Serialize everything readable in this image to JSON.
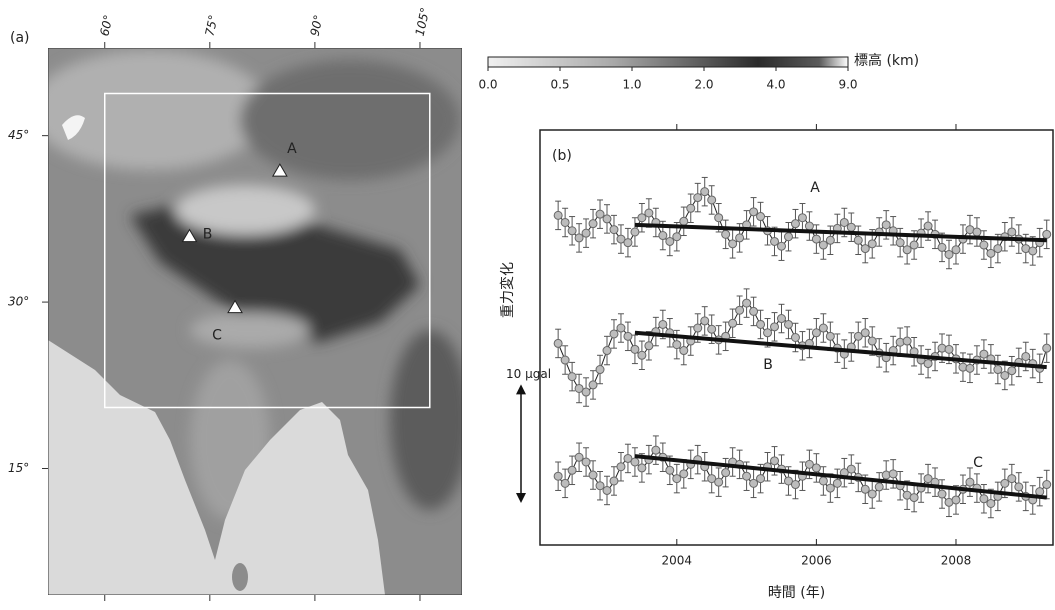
{
  "chart_data": [
    {
      "type": "map",
      "panel_label": "(a)",
      "xlim": [
        51.9,
        111
      ],
      "ylim": [
        3.6,
        52.9
      ],
      "xticks": [
        {
          "value": 60,
          "label": "60°"
        },
        {
          "value": 75,
          "label": "75°"
        },
        {
          "value": 90,
          "label": "90°"
        },
        {
          "value": 105,
          "label": "105°"
        }
      ],
      "yticks": [
        {
          "value": 15,
          "label": "15°"
        },
        {
          "value": 30,
          "label": "30°"
        },
        {
          "value": 45,
          "label": "45°"
        }
      ],
      "region": {
        "lon": [
          60,
          106.4
        ],
        "lat": [
          20.5,
          48.8
        ]
      },
      "sites": [
        {
          "name": "A",
          "lon": 85,
          "lat": 41.8
        },
        {
          "name": "B",
          "lon": 72.1,
          "lat": 35.9
        },
        {
          "name": "C",
          "lon": 78.6,
          "lat": 29.5
        }
      ],
      "colorbar": {
        "title": "標高 (km)",
        "ticks": [
          {
            "value": 0,
            "label": "0.0"
          },
          {
            "value": 0.5,
            "label": "0.5"
          },
          {
            "value": 1,
            "label": "1.0"
          },
          {
            "value": 2,
            "label": "2.0"
          },
          {
            "value": 4,
            "label": "4.0"
          },
          {
            "value": 9,
            "label": "9.0"
          }
        ]
      }
    },
    {
      "type": "scatter",
      "panel_label": "(b)",
      "xlabel": "時間 (年)",
      "ylabel": "重力変化",
      "xlim": [
        2002.04,
        2009.39
      ],
      "ylim": [
        0,
        35
      ],
      "xticks": [
        2004,
        2006,
        2008
      ],
      "scale_bar": {
        "value": 10,
        "label": "10 μgal"
      },
      "error": 1.2,
      "x": [
        2002.3,
        2002.4,
        2002.5,
        2002.6,
        2002.7,
        2002.8,
        2002.9,
        2003.0,
        2003.1,
        2003.2,
        2003.3,
        2003.4,
        2003.5,
        2003.6,
        2003.7,
        2003.8,
        2003.9,
        2004.0,
        2004.1,
        2004.2,
        2004.3,
        2004.4,
        2004.5,
        2004.6,
        2004.7,
        2004.8,
        2004.9,
        2005.0,
        2005.1,
        2005.2,
        2005.3,
        2005.4,
        2005.5,
        2005.6,
        2005.7,
        2005.8,
        2005.9,
        2006.0,
        2006.1,
        2006.2,
        2006.3,
        2006.4,
        2006.5,
        2006.6,
        2006.7,
        2006.8,
        2006.9,
        2007.0,
        2007.1,
        2007.2,
        2007.3,
        2007.4,
        2007.5,
        2007.6,
        2007.7,
        2007.8,
        2007.9,
        2008.0,
        2008.1,
        2008.2,
        2008.3,
        2008.4,
        2008.5,
        2008.6,
        2008.7,
        2008.8,
        2008.9,
        2009.0,
        2009.1,
        2009.2,
        2009.3
      ],
      "trend_x": [
        2003.4,
        2009.3
      ],
      "series": [
        {
          "name": "A",
          "color": "#bdbdbd",
          "trend": [
            27.0,
            25.7
          ],
          "values": [
            27.8,
            27.2,
            26.5,
            25.9,
            26.3,
            27.1,
            27.9,
            27.5,
            26.6,
            25.8,
            25.5,
            26.4,
            27.6,
            28.0,
            27.2,
            26.1,
            25.6,
            26.0,
            27.3,
            28.4,
            29.3,
            29.8,
            29.1,
            27.6,
            26.2,
            25.4,
            25.9,
            27.0,
            28.1,
            27.7,
            26.5,
            25.6,
            25.2,
            26.0,
            27.1,
            27.6,
            26.9,
            25.8,
            25.3,
            25.7,
            26.7,
            27.2,
            26.8,
            25.7,
            25.0,
            25.4,
            26.4,
            27.0,
            26.5,
            25.5,
            24.9,
            25.3,
            26.3,
            26.9,
            26.2,
            25.1,
            24.5,
            24.9,
            25.8,
            26.6,
            26.4,
            25.3,
            24.6,
            25.0,
            26.0,
            26.4,
            25.8,
            25.0,
            24.8,
            25.5,
            26.2
          ]
        },
        {
          "name": "B",
          "color": "#bdbdbd",
          "trend": [
            17.9,
            15.0
          ],
          "values": [
            17.0,
            15.6,
            14.2,
            13.2,
            12.9,
            13.5,
            14.8,
            16.4,
            17.8,
            18.3,
            17.6,
            16.5,
            16.0,
            16.8,
            18.0,
            18.6,
            17.9,
            16.9,
            16.4,
            17.2,
            18.3,
            18.9,
            18.2,
            17.3,
            17.6,
            18.7,
            19.8,
            20.4,
            19.7,
            18.6,
            17.9,
            18.4,
            19.1,
            18.6,
            17.5,
            16.8,
            17.0,
            17.9,
            18.3,
            17.6,
            16.6,
            16.1,
            16.7,
            17.6,
            17.9,
            17.2,
            16.2,
            15.8,
            16.4,
            17.1,
            17.2,
            16.3,
            15.6,
            15.3,
            15.9,
            16.6,
            16.5,
            15.7,
            15.0,
            14.9,
            15.6,
            16.1,
            15.7,
            14.8,
            14.3,
            14.7,
            15.4,
            15.9,
            15.3,
            14.9,
            16.6
          ]
        },
        {
          "name": "C",
          "color": "#bdbdbd",
          "trend": [
            7.5,
            4.0
          ],
          "values": [
            5.8,
            5.2,
            6.3,
            7.4,
            7.0,
            5.9,
            5.0,
            4.6,
            5.4,
            6.6,
            7.3,
            7.0,
            6.5,
            7.2,
            8.0,
            7.4,
            6.3,
            5.6,
            6.0,
            6.8,
            7.2,
            6.6,
            5.6,
            5.3,
            6.1,
            7.0,
            6.8,
            5.8,
            5.2,
            5.6,
            6.6,
            7.1,
            6.4,
            5.4,
            5.1,
            5.8,
            6.8,
            6.5,
            5.4,
            4.8,
            5.2,
            6.1,
            6.4,
            5.7,
            4.7,
            4.3,
            4.9,
            5.9,
            6.0,
            5.0,
            4.2,
            4.0,
            4.8,
            5.6,
            5.3,
            4.3,
            3.6,
            3.8,
            4.7,
            5.3,
            4.8,
            3.9,
            3.5,
            4.1,
            5.2,
            5.6,
            4.9,
            4.1,
            3.8,
            4.5,
            5.1
          ]
        }
      ]
    }
  ]
}
